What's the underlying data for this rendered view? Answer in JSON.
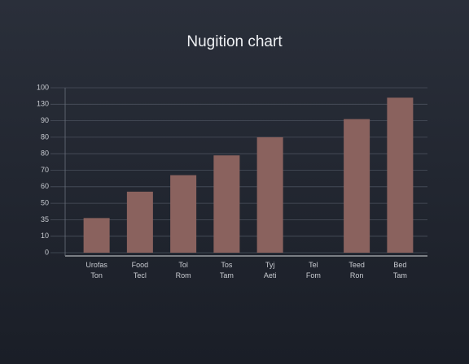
{
  "chart_data": {
    "type": "bar",
    "title": "Nugition chart",
    "categories": [
      "Urofas Ton",
      "Food Tecl",
      "Tol Rom",
      "Tos Tam",
      "Tyj Aeti",
      "Tel Fom",
      "Teed Ron",
      "Bed Tam"
    ],
    "values": [
      21,
      37,
      47,
      59,
      70,
      0,
      81,
      94
    ],
    "color": "#8a625e",
    "ylim": [
      0,
      100
    ],
    "yticks": [
      0,
      10,
      {
        "value": 20,
        "label": "35"
      },
      {
        "value": 30,
        "label": "50"
      },
      {
        "value": 40,
        "label": "60"
      },
      {
        "value": 50,
        "label": "70"
      },
      {
        "value": 60,
        "label": "80"
      },
      {
        "value": 70,
        "label": "80"
      },
      {
        "value": 80,
        "label": "90"
      },
      {
        "value": 90,
        "label": "130"
      },
      100
    ],
    "grid": true
  }
}
